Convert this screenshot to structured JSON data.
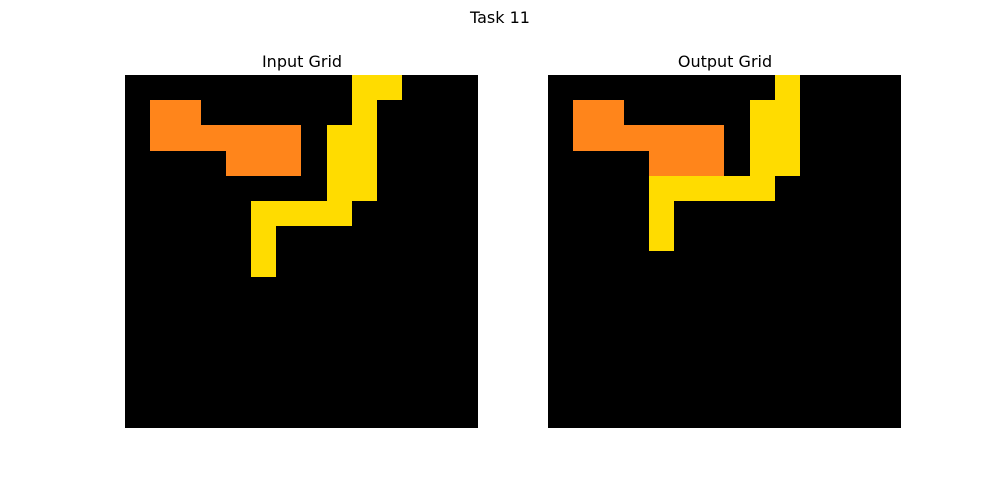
{
  "title": "Task 11",
  "palette": {
    "0": "#000000",
    "1": "#ff851b",
    "2": "#ffdc00"
  },
  "panels": [
    {
      "title": "Input Grid",
      "grid": [
        [
          0,
          0,
          0,
          0,
          0,
          0,
          0,
          0,
          0,
          2,
          2,
          0,
          0,
          0
        ],
        [
          0,
          1,
          1,
          0,
          0,
          0,
          0,
          0,
          0,
          2,
          0,
          0,
          0,
          0
        ],
        [
          0,
          1,
          1,
          1,
          1,
          1,
          1,
          0,
          2,
          2,
          0,
          0,
          0,
          0
        ],
        [
          0,
          0,
          0,
          0,
          1,
          1,
          1,
          0,
          2,
          2,
          0,
          0,
          0,
          0
        ],
        [
          0,
          0,
          0,
          0,
          0,
          0,
          0,
          0,
          2,
          2,
          0,
          0,
          0,
          0
        ],
        [
          0,
          0,
          0,
          0,
          0,
          2,
          2,
          2,
          2,
          0,
          0,
          0,
          0,
          0
        ],
        [
          0,
          0,
          0,
          0,
          0,
          2,
          0,
          0,
          0,
          0,
          0,
          0,
          0,
          0
        ],
        [
          0,
          0,
          0,
          0,
          0,
          2,
          0,
          0,
          0,
          0,
          0,
          0,
          0,
          0
        ],
        [
          0,
          0,
          0,
          0,
          0,
          0,
          0,
          0,
          0,
          0,
          0,
          0,
          0,
          0
        ],
        [
          0,
          0,
          0,
          0,
          0,
          0,
          0,
          0,
          0,
          0,
          0,
          0,
          0,
          0
        ],
        [
          0,
          0,
          0,
          0,
          0,
          0,
          0,
          0,
          0,
          0,
          0,
          0,
          0,
          0
        ],
        [
          0,
          0,
          0,
          0,
          0,
          0,
          0,
          0,
          0,
          0,
          0,
          0,
          0,
          0
        ],
        [
          0,
          0,
          0,
          0,
          0,
          0,
          0,
          0,
          0,
          0,
          0,
          0,
          0,
          0
        ],
        [
          0,
          0,
          0,
          0,
          0,
          0,
          0,
          0,
          0,
          0,
          0,
          0,
          0,
          0
        ]
      ]
    },
    {
      "title": "Output Grid",
      "grid": [
        [
          0,
          0,
          0,
          0,
          0,
          0,
          0,
          0,
          0,
          2,
          0,
          0,
          0,
          0
        ],
        [
          0,
          1,
          1,
          0,
          0,
          0,
          0,
          0,
          2,
          2,
          0,
          0,
          0,
          0
        ],
        [
          0,
          1,
          1,
          1,
          1,
          1,
          1,
          0,
          2,
          2,
          0,
          0,
          0,
          0
        ],
        [
          0,
          0,
          0,
          0,
          1,
          1,
          1,
          0,
          2,
          2,
          0,
          0,
          0,
          0
        ],
        [
          0,
          0,
          0,
          0,
          2,
          2,
          2,
          2,
          2,
          0,
          0,
          0,
          0,
          0
        ],
        [
          0,
          0,
          0,
          0,
          2,
          0,
          0,
          0,
          0,
          0,
          0,
          0,
          0,
          0
        ],
        [
          0,
          0,
          0,
          0,
          2,
          0,
          0,
          0,
          0,
          0,
          0,
          0,
          0,
          0
        ],
        [
          0,
          0,
          0,
          0,
          0,
          0,
          0,
          0,
          0,
          0,
          0,
          0,
          0,
          0
        ],
        [
          0,
          0,
          0,
          0,
          0,
          0,
          0,
          0,
          0,
          0,
          0,
          0,
          0,
          0
        ],
        [
          0,
          0,
          0,
          0,
          0,
          0,
          0,
          0,
          0,
          0,
          0,
          0,
          0,
          0
        ],
        [
          0,
          0,
          0,
          0,
          0,
          0,
          0,
          0,
          0,
          0,
          0,
          0,
          0,
          0
        ],
        [
          0,
          0,
          0,
          0,
          0,
          0,
          0,
          0,
          0,
          0,
          0,
          0,
          0,
          0
        ],
        [
          0,
          0,
          0,
          0,
          0,
          0,
          0,
          0,
          0,
          0,
          0,
          0,
          0,
          0
        ],
        [
          0,
          0,
          0,
          0,
          0,
          0,
          0,
          0,
          0,
          0,
          0,
          0,
          0,
          0
        ]
      ]
    }
  ]
}
